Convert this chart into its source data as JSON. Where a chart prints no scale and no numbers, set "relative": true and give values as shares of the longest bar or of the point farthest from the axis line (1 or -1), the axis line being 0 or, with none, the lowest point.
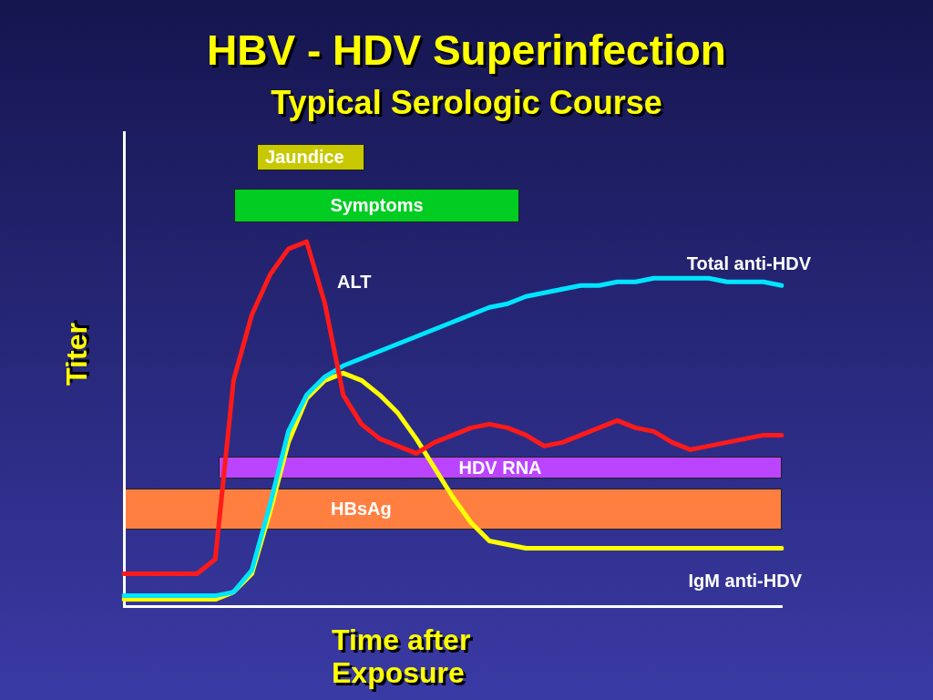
{
  "chart_data": {
    "type": "line",
    "title": "HBV - HDV Superinfection",
    "subtitle": "Typical Serologic Course",
    "xlabel": "Time after Exposure",
    "ylabel": "Titer",
    "relative": true,
    "grid": false,
    "legend": false,
    "marker": "none",
    "line_style": "solid",
    "categories": [
      null,
      null,
      null,
      null,
      null,
      null,
      null,
      null,
      null,
      null,
      null,
      null,
      null,
      null,
      null,
      null,
      null,
      null,
      null,
      null,
      null,
      null,
      null,
      null,
      null,
      null,
      null,
      null,
      null,
      null,
      null,
      null,
      null,
      null,
      null,
      null,
      null
    ],
    "series": [
      {
        "name": "ALT",
        "color": "#ff1a1a",
        "values": [
          0.09,
          0.09,
          0.09,
          0.09,
          0.09,
          0.13,
          0.62,
          0.8,
          0.91,
          0.98,
          1,
          0.83,
          0.58,
          0.5,
          0.46,
          0.44,
          0.42,
          0.45,
          0.47,
          0.49,
          0.5,
          0.49,
          0.47,
          0.44,
          0.45,
          0.47,
          0.49,
          0.51,
          0.49,
          0.48,
          0.45,
          0.43,
          0.44,
          0.45,
          0.46,
          0.47,
          0.47
        ]
      },
      {
        "name": "Total anti-HDV",
        "color": "#00e5ff",
        "values": [
          0.03,
          0.03,
          0.03,
          0.03,
          0.03,
          0.03,
          0.04,
          0.1,
          0.28,
          0.48,
          0.58,
          0.63,
          0.66,
          0.68,
          0.7,
          0.72,
          0.74,
          0.76,
          0.78,
          0.8,
          0.82,
          0.83,
          0.85,
          0.86,
          0.87,
          0.88,
          0.88,
          0.89,
          0.89,
          0.9,
          0.9,
          0.9,
          0.9,
          0.89,
          0.89,
          0.89,
          0.88
        ]
      },
      {
        "name": "IgM anti-HDV",
        "color": "#ffff00",
        "values": [
          0.02,
          0.02,
          0.02,
          0.02,
          0.02,
          0.02,
          0.04,
          0.09,
          0.26,
          0.45,
          0.57,
          0.62,
          0.64,
          0.62,
          0.58,
          0.53,
          0.46,
          0.38,
          0.3,
          0.23,
          0.18,
          0.17,
          0.16,
          0.16,
          0.16,
          0.16,
          0.16,
          0.16,
          0.16,
          0.16,
          0.16,
          0.16,
          0.16,
          0.16,
          0.16,
          0.16,
          0.16
        ]
      }
    ],
    "annotations": [
      "Jaundice",
      "Symptoms",
      "HDV RNA",
      "HBsAg"
    ]
  }
}
